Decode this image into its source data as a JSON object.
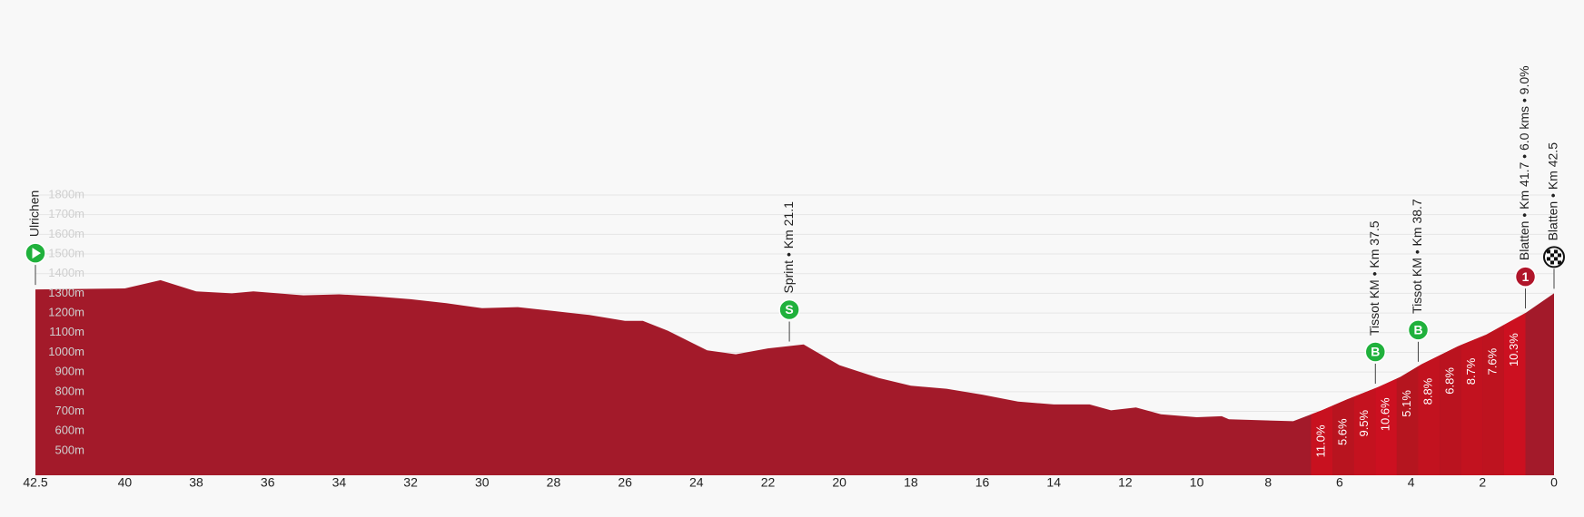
{
  "chart_data": {
    "type": "area",
    "color": "#a31a2a",
    "xlim": [
      42.5,
      0
    ],
    "ylim": [
      375,
      1800
    ],
    "xticks": [
      42.5,
      40,
      38,
      36,
      34,
      32,
      30,
      28,
      26,
      24,
      22,
      20,
      18,
      16,
      14,
      12,
      10,
      8,
      6,
      4,
      2,
      0
    ],
    "yticks": [
      {
        "value": 500,
        "label": "500m"
      },
      {
        "value": 600,
        "label": "600m"
      },
      {
        "value": 700,
        "label": "700m"
      },
      {
        "value": 800,
        "label": "800m"
      },
      {
        "value": 900,
        "label": "900m"
      },
      {
        "value": 1000,
        "label": "1000m"
      },
      {
        "value": 1100,
        "label": "1100m"
      },
      {
        "value": 1200,
        "label": "1200m"
      },
      {
        "value": 1300,
        "label": "1300m"
      },
      {
        "value": 1400,
        "label": "1400m"
      },
      {
        "value": 1500,
        "label": "1500m"
      },
      {
        "value": 1600,
        "label": "1600m"
      },
      {
        "value": 1700,
        "label": "1700m"
      },
      {
        "value": 1800,
        "label": "1800m"
      }
    ],
    "grid": true,
    "x": [
      42.5,
      40,
      39,
      38,
      37,
      36.4,
      35,
      34,
      33,
      32,
      31,
      30,
      29,
      28,
      27,
      26,
      25.5,
      24.8,
      23.7,
      22.9,
      22,
      21,
      20,
      18.9,
      18,
      17,
      16,
      15,
      14,
      13,
      12.4,
      11.7,
      11,
      10,
      9.3,
      9.1,
      7.3,
      6.5,
      5.8,
      4.9,
      4.3,
      3.7,
      2.7,
      1.9,
      1.2,
      0.8,
      0
    ],
    "values": [
      1320,
      1325,
      1367,
      1310,
      1300,
      1310,
      1290,
      1295,
      1285,
      1270,
      1250,
      1225,
      1230,
      1210,
      1190,
      1160,
      1160,
      1110,
      1010,
      990,
      1020,
      1040,
      935,
      870,
      830,
      815,
      785,
      750,
      735,
      735,
      705,
      720,
      685,
      670,
      675,
      660,
      650,
      705,
      760,
      825,
      875,
      940,
      1030,
      1090,
      1160,
      1200,
      1300
    ],
    "climb": {
      "edges": [
        6.8,
        6.2,
        5.6,
        5.0,
        4.4,
        3.8,
        3.2,
        2.6,
        2.0,
        1.4,
        0.8
      ],
      "gradients": [
        11.0,
        5.6,
        9.5,
        10.6,
        5.1,
        8.8,
        6.8,
        8.7,
        7.6,
        10.3
      ],
      "value_labels": [
        "11.0%",
        "5.6%",
        "9.5%",
        "10.6%",
        "5.1%",
        "8.8%",
        "6.8%",
        "8.7%",
        "7.6%",
        "10.3%"
      ],
      "colors": [
        "#c8111f",
        "#b8141f",
        "#c4121f",
        "#cc1020",
        "#b5151f",
        "#c2121f",
        "#ba131f",
        "#c2121f",
        "#be131f",
        "#cc1020"
      ]
    },
    "markers": [
      {
        "label": "Ulrichen",
        "x": 42.5,
        "kind": "start",
        "color": "#20b13c"
      },
      {
        "label": "Sprint • Km 21.1",
        "x": 21.4,
        "kind": "sprint",
        "symbol": "S",
        "color": "#20b13c"
      },
      {
        "label": "Tissot KM • Km 37.5",
        "x": 5.0,
        "kind": "bonus",
        "symbol": "B",
        "color": "#20b13c"
      },
      {
        "label": "Tissot KM • Km 38.7",
        "x": 3.8,
        "kind": "bonus",
        "symbol": "B",
        "color": "#20b13c"
      },
      {
        "label": "Blatten • Km 41.7 • 6.0 kms • 9.0%",
        "x": 0.8,
        "kind": "kom",
        "symbol": "1",
        "color": "#b0152a"
      },
      {
        "label": "Blatten • Km 42.5",
        "x": 0,
        "kind": "finish",
        "color": "#111111"
      }
    ]
  }
}
